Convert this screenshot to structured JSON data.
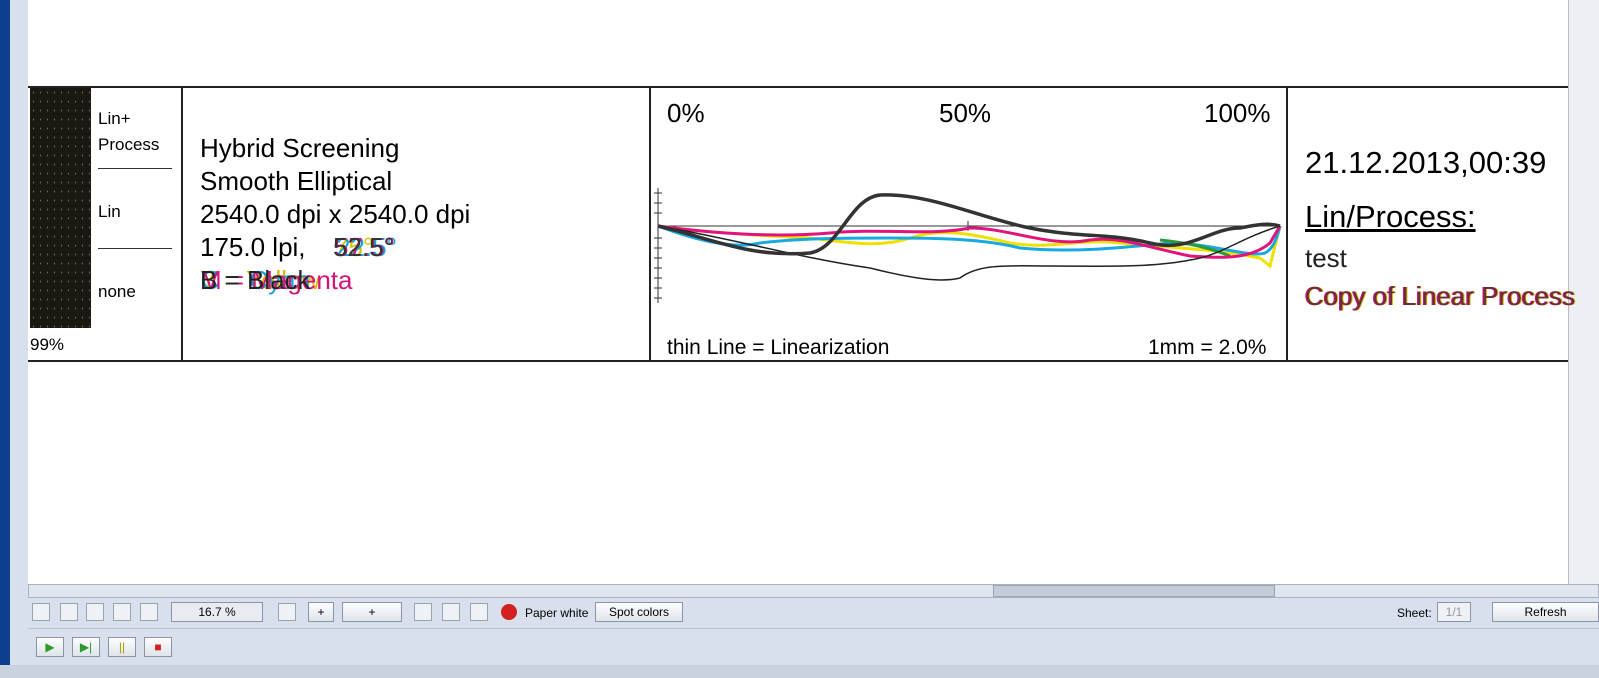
{
  "swatch": {
    "labels": [
      "Lin+",
      "Process",
      "Lin",
      "none"
    ],
    "coverage": "99%"
  },
  "screening": {
    "lines": [
      "Hybrid Screening",
      "Smooth Elliptical",
      "2540.0 dpi  x  2540.0 dpi",
      "175.0 lpi,"
    ],
    "angles": [
      "52.5°",
      "57.5°",
      "22.5°",
      "75°"
    ],
    "separations": [
      "B = Black",
      "M = Magenta",
      "Y = Yellow",
      "C = Cyan"
    ]
  },
  "curve_panel": {
    "left_label": "0%",
    "mid_label": "50%",
    "right_label": "100%",
    "legend": "thin Line = Linearization",
    "scale": "1mm = 2.0%"
  },
  "info": {
    "date": "21.12.2013,00:39",
    "heading": "Lin/Process:",
    "name": "test",
    "process": "Copy of Linear Process"
  },
  "toolbar": {
    "zoom": "16.7 %",
    "paper": "Paper white",
    "spot": "Spot colors",
    "sheet_label": "Sheet:",
    "sheet": "1/1",
    "refresh": "Refresh"
  }
}
